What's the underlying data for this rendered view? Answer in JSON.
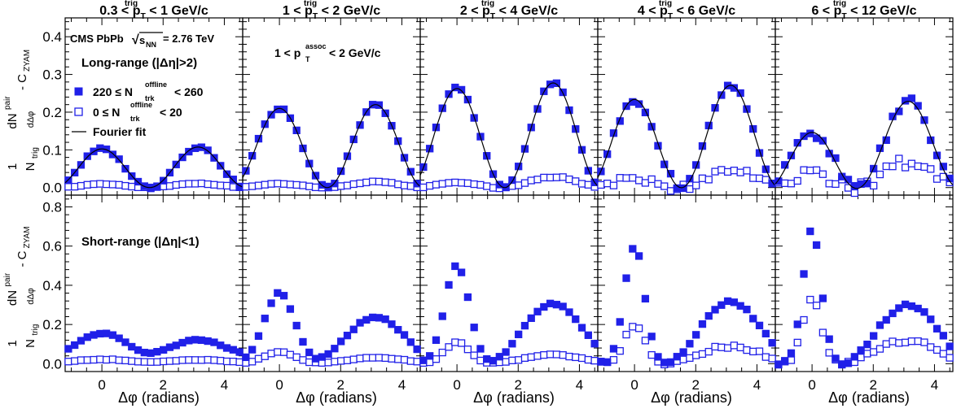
{
  "chart_data": {
    "type": "scatter",
    "title": "",
    "xlabel": "Δφ (radians)",
    "xlim": [
      -1.2,
      4.6
    ],
    "xticks": [
      0,
      2,
      4
    ],
    "legend_placement": "top-left",
    "experiment_label": "CMS PbPb √sNN = 2.76 TeV",
    "assoc_label": "1 < pT^assoc < 2 GeV/c",
    "columns": [
      "0.3 < pT^trig < 1 GeV/c",
      "1 < pT^trig < 2 GeV/c",
      "2 < pT^trig < 4 GeV/c",
      "4 < pT^trig < 6 GeV/c",
      "6 < pT^trig < 12 GeV/c"
    ],
    "legend": [
      {
        "marker": "filled-square",
        "label": "220 ≤ N_trk^offline < 260"
      },
      {
        "marker": "open-square",
        "label": "0 ≤ N_trk^offline < 20"
      },
      {
        "marker": "line",
        "label": "Fourier fit"
      }
    ],
    "rows": [
      {
        "name": "Long-range (|Δη|>2)",
        "ylabel": "1/N_trig dN^pair/dΔφ - C_ZYAM",
        "ylim": [
          -0.02,
          0.45
        ],
        "yticks": [
          0.0,
          0.1,
          0.2,
          0.3,
          0.4
        ],
        "panels": [
          {
            "high": {
              "a": 0.1,
              "d": 0.11,
              "noise": 0.003
            },
            "low": {
              "a": 0.008,
              "d": 0.012,
              "noise": 0.001
            },
            "fit": true
          },
          {
            "high": {
              "a": 0.205,
              "d": 0.225,
              "noise": 0.004
            },
            "low": {
              "a": 0.008,
              "d": 0.018,
              "noise": 0.001
            },
            "fit": true
          },
          {
            "high": {
              "a": 0.255,
              "d": 0.285,
              "noise": 0.004
            },
            "low": {
              "a": 0.008,
              "d": 0.035,
              "noise": 0.002
            },
            "fit": true
          },
          {
            "high": {
              "a": 0.215,
              "d": 0.29,
              "noise": 0.008
            },
            "low": {
              "a": 0.01,
              "d": 0.06,
              "noise": 0.01
            },
            "fit": true
          },
          {
            "high": {
              "a": 0.105,
              "d": 0.27,
              "noise": 0.012
            },
            "low": {
              "a": 0.02,
              "d": 0.085,
              "noise": 0.015
            },
            "fit": true
          }
        ]
      },
      {
        "name": "Short-range (|Δη|<1)",
        "ylabel": "1/N_trig dN^pair/dΔφ - C_ZYAM",
        "ylim": [
          -0.04,
          0.86
        ],
        "yticks": [
          0.0,
          0.2,
          0.4,
          0.6,
          0.8
        ],
        "panels": [
          {
            "high": {
              "a": 0.155,
              "d": 0.12,
              "sig": 0.9,
              "noise": 0.003
            },
            "low": {
              "a": 0.022,
              "d": 0.02,
              "sig": 0.9,
              "noise": 0.002
            }
          },
          {
            "high": {
              "a": 0.36,
              "d": 0.235,
              "sig": 0.5,
              "noise": 0.004
            },
            "low": {
              "a": 0.06,
              "d": 0.03,
              "sig": 0.5,
              "noise": 0.002
            }
          },
          {
            "high": {
              "a": 0.5,
              "d": 0.305,
              "sig": 0.4,
              "noise": 0.005
            },
            "low": {
              "a": 0.11,
              "d": 0.045,
              "sig": 0.4,
              "noise": 0.003
            }
          },
          {
            "high": {
              "a": 0.6,
              "d": 0.315,
              "sig": 0.33,
              "noise": 0.008
            },
            "low": {
              "a": 0.2,
              "d": 0.09,
              "sig": 0.33,
              "noise": 0.01
            }
          },
          {
            "high": {
              "a": 0.68,
              "d": 0.3,
              "sig": 0.3,
              "noise": 0.01
            },
            "low": {
              "a": 0.34,
              "d": 0.12,
              "sig": 0.3,
              "noise": 0.012
            }
          }
        ]
      }
    ],
    "marker_color": "#2020e8"
  }
}
